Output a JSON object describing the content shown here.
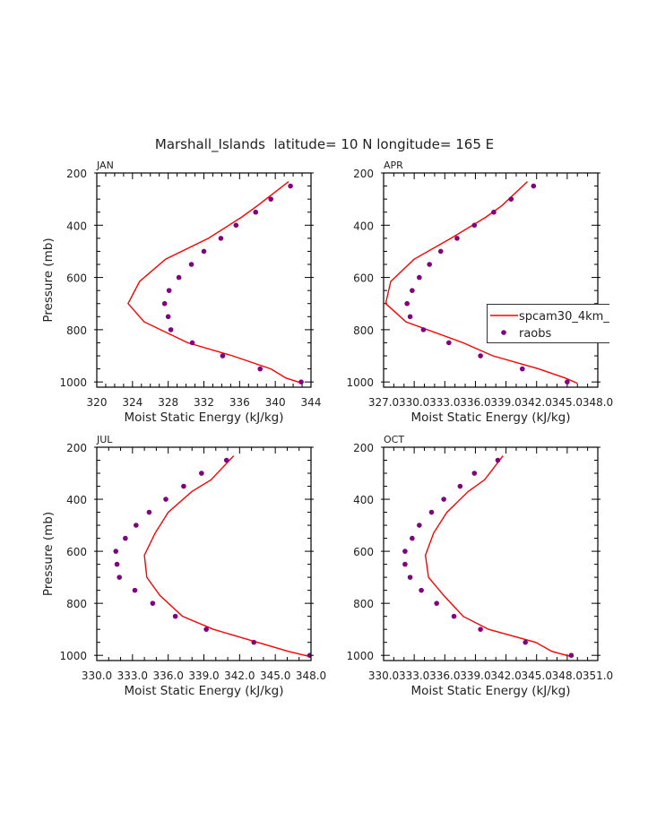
{
  "chart_data": {
    "title": "Marshall_Islands  latitude= 10 N longitude= 165 E",
    "legend": {
      "placement": "inside APR panel, right, clipped",
      "entries": [
        "spcam30_4km_",
        "raobs"
      ]
    },
    "colors": {
      "model": "#ff0000",
      "obs": "#800080"
    },
    "panels": [
      {
        "label": "JAN",
        "type": "line+scatter",
        "xlabel": "Moist Static Energy (kJ/kg)",
        "ylabel": "Pressure (mb)",
        "xlim": [
          320,
          344
        ],
        "xticks": [
          320,
          324,
          328,
          332,
          336,
          340,
          344
        ],
        "xtick_labels": [
          "320",
          "324",
          "328",
          "332",
          "336",
          "340",
          "344"
        ],
        "xminor": 1,
        "ylim": [
          200,
          1020
        ],
        "yticks": [
          200,
          400,
          600,
          800,
          1000
        ],
        "ytick_labels": [
          "200",
          "400",
          "600",
          "800",
          "1000"
        ],
        "yreversed": true,
        "model": {
          "name": "spcam30_4km_",
          "p": [
            233,
            325,
            370,
            450,
            530,
            615,
            700,
            770,
            850,
            900,
            950,
            985,
            1005
          ],
          "x": [
            341.5,
            338.0,
            336.2,
            332.5,
            327.7,
            324.8,
            323.5,
            325.3,
            330.2,
            335.2,
            339.5,
            341.2,
            343.0
          ]
        },
        "obs": {
          "name": "raobs",
          "p": [
            250,
            300,
            350,
            400,
            450,
            500,
            550,
            600,
            650,
            700,
            750,
            800,
            850,
            900,
            950,
            1000
          ],
          "x": [
            341.7,
            339.5,
            337.8,
            335.6,
            333.9,
            332.0,
            330.6,
            329.2,
            328.1,
            327.6,
            328.0,
            328.3,
            330.7,
            334.1,
            338.3,
            342.9
          ]
        }
      },
      {
        "label": "APR",
        "type": "line+scatter",
        "xlabel": "Moist Static Energy (kJ/kg)",
        "ylabel": "",
        "xlim": [
          327,
          348
        ],
        "xticks": [
          327,
          330,
          333,
          336,
          339,
          342,
          345,
          348
        ],
        "xtick_labels": [
          "327.0",
          "330.0",
          "333.0",
          "336.0",
          "339.0",
          "342.0",
          "345.0",
          "348.0"
        ],
        "xminor": 1,
        "ylim": [
          200,
          1020
        ],
        "yticks": [
          200,
          400,
          600,
          800,
          1000
        ],
        "ytick_labels": [
          "200",
          "400",
          "600",
          "800",
          "1000"
        ],
        "yreversed": true,
        "model": {
          "name": "spcam30_4km_",
          "p": [
            233,
            325,
            370,
            450,
            530,
            615,
            700,
            770,
            850,
            900,
            950,
            985,
            1005
          ],
          "x": [
            341.1,
            338.6,
            337.0,
            333.6,
            330.0,
            327.7,
            327.2,
            329.2,
            334.8,
            337.7,
            342.2,
            344.8,
            346.0
          ]
        },
        "obs": {
          "name": "raobs",
          "p": [
            250,
            300,
            350,
            400,
            450,
            500,
            550,
            600,
            650,
            700,
            750,
            800,
            850,
            900,
            950,
            1000
          ],
          "x": [
            341.7,
            339.5,
            337.8,
            335.9,
            334.2,
            332.6,
            331.5,
            330.5,
            329.8,
            329.3,
            329.6,
            330.9,
            333.4,
            336.5,
            340.6,
            345.0
          ]
        }
      },
      {
        "label": "JUL",
        "type": "line+scatter",
        "xlabel": "Moist Static Energy (kJ/kg)",
        "ylabel": "Pressure (mb)",
        "xlim": [
          330,
          348
        ],
        "xticks": [
          330,
          333,
          336,
          339,
          342,
          345,
          348
        ],
        "xtick_labels": [
          "330.0",
          "333.0",
          "336.0",
          "339.0",
          "342.0",
          "345.0",
          "348.0"
        ],
        "xminor": 1,
        "ylim": [
          200,
          1020
        ],
        "yticks": [
          200,
          400,
          600,
          800,
          1000
        ],
        "ytick_labels": [
          "200",
          "400",
          "600",
          "800",
          "1000"
        ],
        "yreversed": true,
        "model": {
          "name": "spcam30_4km_",
          "p": [
            233,
            325,
            370,
            450,
            530,
            615,
            700,
            770,
            850,
            900,
            950,
            985,
            1005
          ],
          "x": [
            341.5,
            339.6,
            338.0,
            336.0,
            334.9,
            334.0,
            334.2,
            335.3,
            337.2,
            339.8,
            343.5,
            346.1,
            347.9
          ]
        },
        "obs": {
          "name": "raobs",
          "p": [
            250,
            300,
            350,
            400,
            450,
            500,
            550,
            600,
            650,
            700,
            750,
            800,
            850,
            900,
            950,
            1000
          ],
          "x": [
            340.9,
            338.8,
            337.3,
            335.8,
            334.4,
            333.3,
            332.4,
            331.6,
            331.7,
            331.9,
            333.2,
            334.7,
            336.6,
            339.2,
            343.2,
            347.9
          ]
        }
      },
      {
        "label": "OCT",
        "type": "line+scatter",
        "xlabel": "Moist Static Energy (kJ/kg)",
        "ylabel": "",
        "xlim": [
          330,
          351
        ],
        "xticks": [
          330,
          333,
          336,
          339,
          342,
          345,
          348,
          351
        ],
        "xtick_labels": [
          "330.0",
          "333.0",
          "336.0",
          "339.0",
          "342.0",
          "345.0",
          "348.0",
          "351.0"
        ],
        "xminor": 1,
        "ylim": [
          200,
          1020
        ],
        "yticks": [
          200,
          400,
          600,
          800,
          1000
        ],
        "ytick_labels": [
          "200",
          "400",
          "600",
          "800",
          "1000"
        ],
        "yreversed": true,
        "model": {
          "name": "spcam30_4km_",
          "p": [
            233,
            325,
            370,
            450,
            530,
            615,
            700,
            770,
            850,
            900,
            950,
            985,
            1005
          ],
          "x": [
            341.7,
            339.9,
            338.3,
            336.2,
            334.9,
            334.1,
            334.4,
            335.9,
            337.8,
            340.3,
            344.9,
            346.5,
            348.4
          ]
        },
        "obs": {
          "name": "raobs",
          "p": [
            250,
            300,
            350,
            400,
            450,
            500,
            550,
            600,
            650,
            700,
            750,
            800,
            850,
            900,
            950,
            1000
          ],
          "x": [
            341.2,
            338.9,
            337.5,
            335.9,
            334.7,
            333.5,
            332.8,
            332.1,
            332.1,
            332.6,
            333.7,
            335.2,
            336.9,
            339.5,
            343.9,
            348.4
          ]
        }
      }
    ]
  }
}
